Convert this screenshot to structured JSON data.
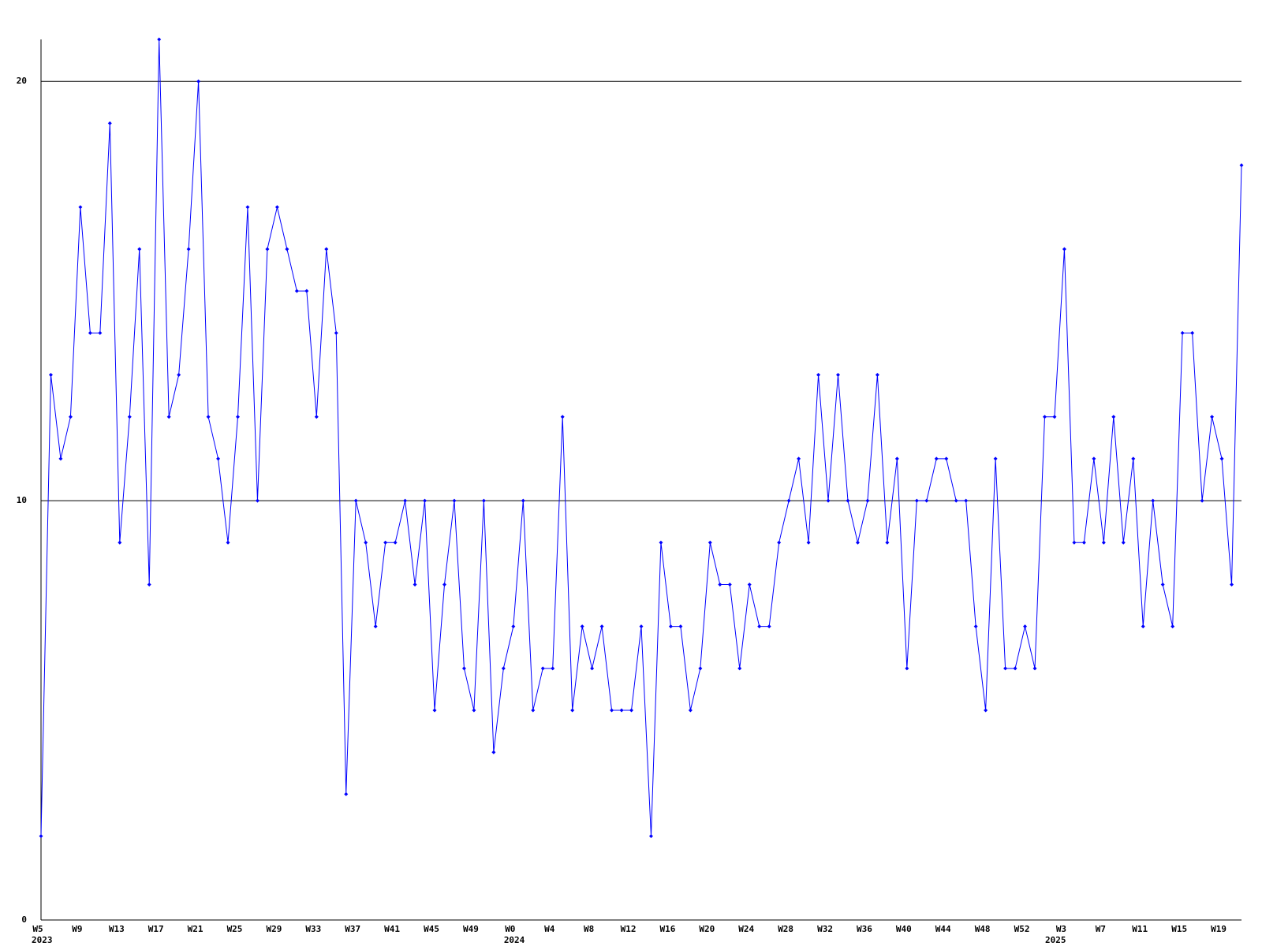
{
  "chart_data": {
    "type": "line",
    "categories": [
      "W5",
      null,
      null,
      null,
      "W9",
      null,
      null,
      null,
      "W13",
      null,
      null,
      null,
      "W17",
      null,
      null,
      null,
      "W21",
      null,
      null,
      null,
      "W25",
      null,
      null,
      null,
      "W29",
      null,
      null,
      null,
      "W33",
      null,
      null,
      null,
      "W37",
      null,
      null,
      null,
      "W41",
      null,
      null,
      null,
      "W45",
      null,
      null,
      null,
      "W49",
      null,
      null,
      null,
      "W0",
      null,
      null,
      null,
      "W4",
      null,
      null,
      null,
      "W8",
      null,
      null,
      null,
      "W12",
      null,
      null,
      null,
      "W16",
      null,
      null,
      null,
      "W20",
      null,
      null,
      null,
      "W24",
      null,
      null,
      null,
      "W28",
      null,
      null,
      null,
      "W32",
      null,
      null,
      null,
      "W36",
      null,
      null,
      null,
      "W40",
      null,
      null,
      null,
      "W44",
      null,
      null,
      null,
      "W48",
      null,
      null,
      null,
      "W52",
      null,
      null,
      null,
      "W3",
      null,
      null,
      null,
      "W7",
      null,
      null,
      null,
      "W11",
      null,
      null,
      null,
      "W15",
      null,
      null,
      null,
      "W19",
      null,
      null
    ],
    "years": [
      "2023",
      null,
      null,
      null,
      null,
      null,
      null,
      null,
      null,
      null,
      null,
      null,
      null,
      null,
      null,
      null,
      null,
      null,
      null,
      null,
      null,
      null,
      null,
      null,
      null,
      null,
      null,
      null,
      null,
      null,
      null,
      null,
      null,
      null,
      null,
      null,
      null,
      null,
      null,
      null,
      null,
      null,
      null,
      null,
      null,
      null,
      null,
      null,
      "2024",
      null,
      null,
      null,
      null,
      null,
      null,
      null,
      null,
      null,
      null,
      null,
      null,
      null,
      null,
      null,
      null,
      null,
      null,
      null,
      null,
      null,
      null,
      null,
      null,
      null,
      null,
      null,
      null,
      null,
      null,
      null,
      null,
      null,
      null,
      null,
      null,
      null,
      null,
      null,
      null,
      null,
      null,
      null,
      null,
      null,
      null,
      null,
      null,
      null,
      null,
      null,
      null,
      null,
      null,
      "2025",
      null,
      null,
      null,
      null,
      null,
      null,
      null,
      null,
      null,
      null,
      null,
      null,
      null,
      null,
      null,
      null,
      null,
      null,
      null,
      null,
      null
    ],
    "values": [
      2,
      13,
      11,
      12,
      17,
      14,
      14,
      19,
      9,
      12,
      16,
      8,
      21,
      12,
      13,
      16,
      20,
      12,
      11,
      9,
      12,
      17,
      10,
      16,
      17,
      16,
      15,
      15,
      12,
      16,
      14,
      3,
      10,
      9,
      7,
      9,
      9,
      10,
      8,
      10,
      5,
      8,
      10,
      6,
      5,
      10,
      4,
      6,
      7,
      10,
      5,
      6,
      6,
      12,
      5,
      7,
      6,
      7,
      5,
      5,
      5,
      7,
      2,
      9,
      7,
      7,
      5,
      6,
      9,
      8,
      8,
      6,
      8,
      7,
      7,
      9,
      10,
      11,
      9,
      13,
      10,
      13,
      10,
      9,
      10,
      13,
      9,
      11,
      6,
      10,
      10,
      11,
      11,
      10,
      10,
      7,
      5,
      11,
      6,
      6,
      7,
      6,
      12,
      12,
      16,
      9,
      9,
      11,
      9,
      12,
      9,
      11,
      7,
      10,
      8,
      7,
      14,
      14,
      10,
      12,
      11,
      8,
      18
    ],
    "color": "#0000ff",
    "ylim": [
      0,
      21
    ],
    "yticks": [
      0,
      10,
      20
    ],
    "grid": true
  }
}
